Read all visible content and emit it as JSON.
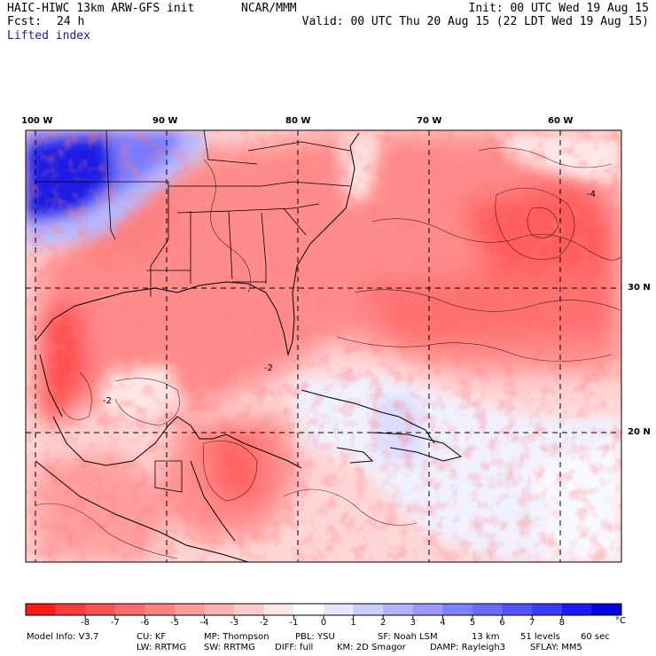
{
  "header": {
    "left_line1": "HAIC-HIWC 13km ARW-GFS init",
    "left_org": "NCAR/MMM",
    "left_line2_label": "Fcst:",
    "left_line2_value": "24 h",
    "field_name": "Lifted index",
    "init": "Init: 00 UTC Wed 19 Aug 15",
    "valid": "Valid: 00 UTC Thu 20 Aug 15 (22 LDT Wed 19 Aug 15)"
  },
  "map": {
    "lon_labels": [
      "100 W",
      "90 W",
      "80 W",
      "70 W",
      "60 W"
    ],
    "lat_labels": [
      "30 N",
      "20 N"
    ],
    "contour_labels": [
      "-2",
      "-2",
      "-4"
    ]
  },
  "colorbar": {
    "colors": [
      "#ff1a1a",
      "#ff3b3b",
      "#ff5252",
      "#ff6a6a",
      "#ff8080",
      "#ff9a9a",
      "#ffb3b3",
      "#ffcccc",
      "#ffe6e6",
      "#ffffff",
      "#e6e6ff",
      "#ccccff",
      "#b3b3ff",
      "#9a9aff",
      "#8080ff",
      "#6a6aff",
      "#5252ff",
      "#3b3bff",
      "#1a1aff",
      "#0000e0"
    ],
    "tick_labels": [
      "-8",
      "-7",
      "-6",
      "-5",
      "-4",
      "-3",
      "-2",
      "-1",
      "0",
      "1",
      "2",
      "3",
      "4",
      "5",
      "6",
      "7",
      "8"
    ],
    "unit": "°C"
  },
  "footer": {
    "line1": [
      "Model Info: V3.7",
      "CU: KF",
      "MP: Thompson",
      "PBL: YSU",
      "SF: Noah LSM",
      "13 km",
      "51 levels",
      "60 sec"
    ],
    "line2": [
      "LW: RRTMG",
      "SW: RRTMG",
      "DIFF: full",
      "KM: 2D Smagor",
      "DAMP: Rayleigh3",
      "SFLAY: MM5"
    ]
  }
}
